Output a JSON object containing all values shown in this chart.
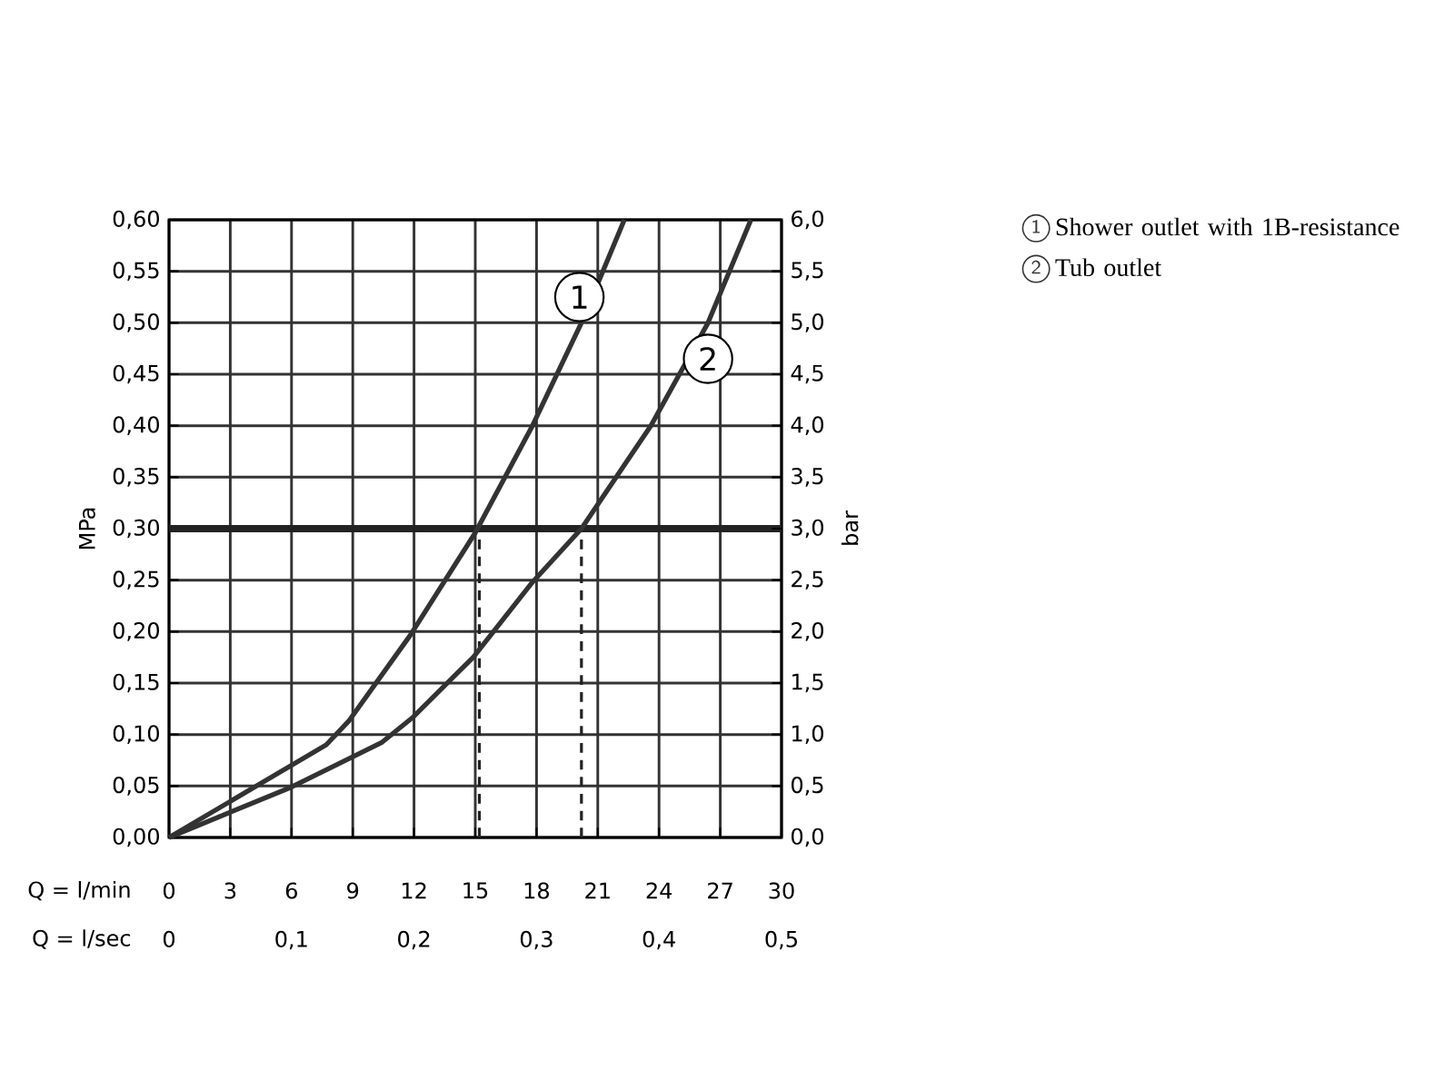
{
  "chart_data": {
    "type": "line",
    "xlabel": "Q = l/min",
    "ylabel": "MPa",
    "y2label": "bar",
    "x2label": "Q = l/sec",
    "xlim": [
      0,
      30
    ],
    "xticks": [
      0,
      3,
      6,
      9,
      12,
      15,
      18,
      21,
      24,
      27,
      30
    ],
    "x2lim": [
      0,
      0.5
    ],
    "x2ticks": [
      0,
      {
        "value": 0.1,
        "label": "0,1"
      },
      {
        "value": 0.2,
        "label": "0,2"
      },
      {
        "value": 0.3,
        "label": "0,3"
      },
      {
        "value": 0.4,
        "label": "0,4"
      },
      {
        "value": 0.5,
        "label": "0,5"
      }
    ],
    "ylim": [
      0,
      0.6
    ],
    "yticks": [
      {
        "value": 0,
        "label": "0,00"
      },
      {
        "value": 0.05,
        "label": "0,05"
      },
      {
        "value": 0.1,
        "label": "0,10"
      },
      {
        "value": 0.15,
        "label": "0,15"
      },
      {
        "value": 0.2,
        "label": "0,20"
      },
      {
        "value": 0.25,
        "label": "0,25"
      },
      {
        "value": 0.3,
        "label": "0,30"
      },
      {
        "value": 0.35,
        "label": "0,35"
      },
      {
        "value": 0.4,
        "label": "0,40"
      },
      {
        "value": 0.45,
        "label": "0,45"
      },
      {
        "value": 0.5,
        "label": "0,50"
      },
      {
        "value": 0.55,
        "label": "0,55"
      },
      {
        "value": 0.6,
        "label": "0,60"
      }
    ],
    "y2lim": [
      0,
      6
    ],
    "y2ticks": [
      {
        "value": 0,
        "label": "0,0"
      },
      {
        "value": 0.5,
        "label": "0,5"
      },
      {
        "value": 1,
        "label": "1,0"
      },
      {
        "value": 1.5,
        "label": "1,5"
      },
      {
        "value": 2,
        "label": "2,0"
      },
      {
        "value": 2.5,
        "label": "2,5"
      },
      {
        "value": 3,
        "label": "3,0"
      },
      {
        "value": 3.5,
        "label": "3,5"
      },
      {
        "value": 4,
        "label": "4,0"
      },
      {
        "value": 4.5,
        "label": "4,5"
      },
      {
        "value": 5,
        "label": "5,0"
      },
      {
        "value": 5.5,
        "label": "5,5"
      },
      {
        "value": 6,
        "label": "6,0"
      }
    ],
    "grid": true,
    "legend": "right",
    "line_style": "solid",
    "series": [
      {
        "name": "Shower outlet with 1B-resistance",
        "color": "#333333",
        "x": [
          0,
          7.7,
          8.8,
          11.8,
          15.0,
          17.8,
          20.2,
          22.3
        ],
        "values": [
          0,
          0.09,
          0.113,
          0.196,
          0.296,
          0.4,
          0.5,
          0.6
        ]
      },
      {
        "name": "Tub outlet",
        "color": "#333333",
        "x": [
          0,
          6.0,
          10.4,
          11.9,
          14.9,
          17.8,
          20.2,
          23.6,
          26.4,
          28.5
        ],
        "values": [
          0,
          0.049,
          0.092,
          0.116,
          0.175,
          0.248,
          0.3,
          0.4,
          0.5,
          0.6
        ]
      }
    ],
    "ref_lines": [
      {
        "axis": "y",
        "value": 0.3,
        "color": "#222222",
        "line_style": "solid"
      },
      {
        "axis": "x",
        "value": 15.2,
        "color": "#222222",
        "line_style": "dashed"
      },
      {
        "axis": "x",
        "value": 20.2,
        "color": "#222222",
        "line_style": "dashed"
      }
    ],
    "annotations": [
      {
        "text": "1",
        "x": 20.1,
        "y": 0.525
      },
      {
        "text": "2",
        "x": 26.4,
        "y": 0.465
      }
    ]
  }
}
